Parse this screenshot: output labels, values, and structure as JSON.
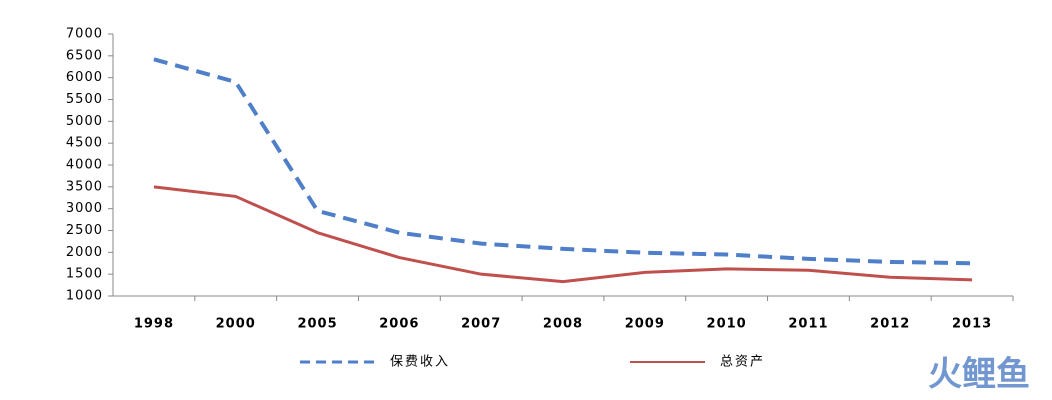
{
  "chart_data": {
    "type": "line",
    "categories": [
      "1998",
      "2000",
      "2005",
      "2006",
      "2007",
      "2008",
      "2009",
      "2010",
      "2011",
      "2012",
      "2013"
    ],
    "series": [
      {
        "name": "保费收入",
        "color": "#4f7fc8",
        "dashed": true,
        "values": [
          6420,
          5900,
          2950,
          2450,
          2200,
          2080,
          1990,
          1950,
          1850,
          1780,
          1750
        ]
      },
      {
        "name": "总资产",
        "color": "#c0504d",
        "dashed": false,
        "values": [
          3500,
          3280,
          2450,
          1880,
          1500,
          1330,
          1540,
          1620,
          1590,
          1430,
          1370
        ]
      }
    ],
    "ylim": [
      1000,
      7000
    ],
    "yticks": [
      1000,
      1500,
      2000,
      2500,
      3000,
      3500,
      4000,
      4500,
      5000,
      5500,
      6000,
      6500,
      7000
    ],
    "watermark": "火鲤鱼"
  }
}
